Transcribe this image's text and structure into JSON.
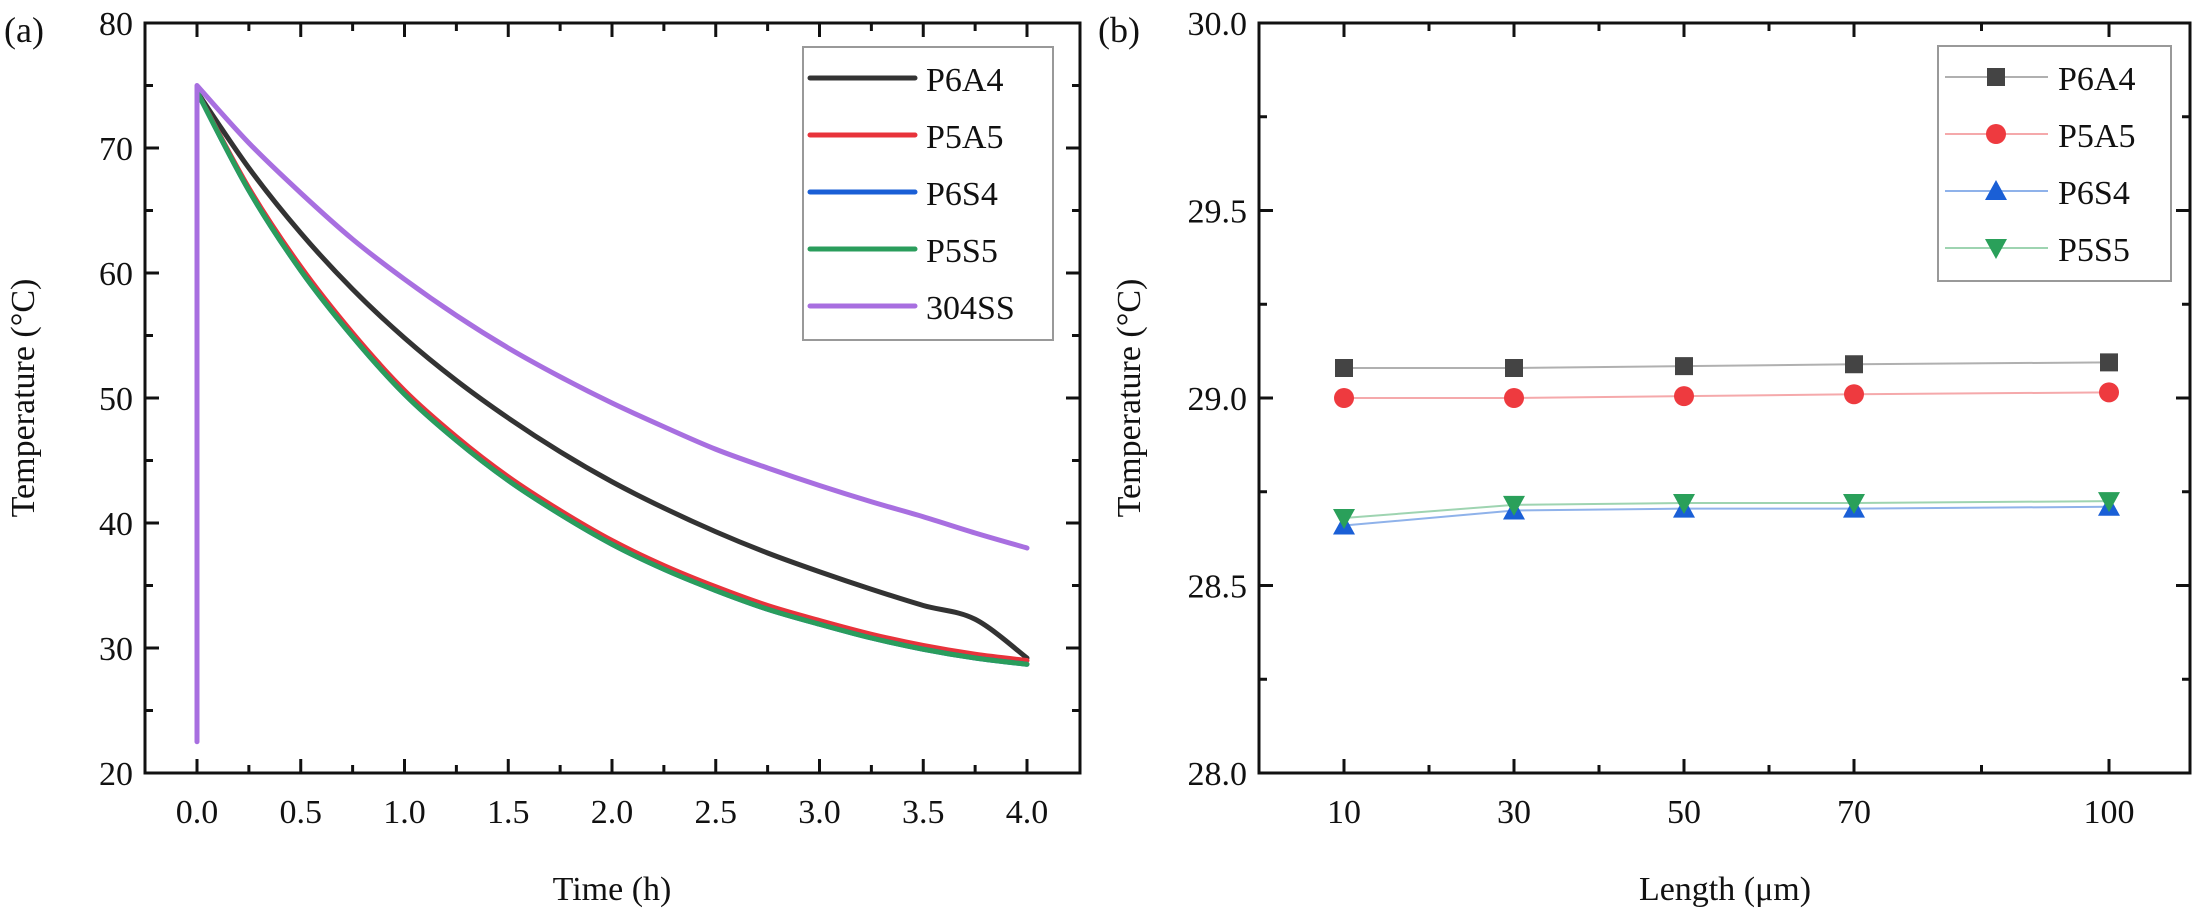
{
  "chart_data": [
    {
      "panel": "(a)",
      "type": "line",
      "title": "",
      "xlabel": "Time (h)",
      "ylabel": "Temperature (°C)",
      "xlim": [
        -0.35,
        4.35
      ],
      "ylim": [
        20,
        80
      ],
      "xticks": [
        "0.0",
        "0.5",
        "1.0",
        "1.5",
        "2.0",
        "2.5",
        "3.0",
        "3.5",
        "4.0"
      ],
      "xtick_values": [
        0,
        0.5,
        1,
        1.5,
        2,
        2.5,
        3,
        3.5,
        4
      ],
      "yticks": [
        "20",
        "30",
        "40",
        "50",
        "60",
        "70",
        "80"
      ],
      "ytick_values": [
        20,
        30,
        40,
        50,
        60,
        70,
        80
      ],
      "grid": false,
      "legend_position": "top-right",
      "x": [
        0,
        0.25,
        0.5,
        0.75,
        1.0,
        1.25,
        1.5,
        1.75,
        2.0,
        2.25,
        2.5,
        2.75,
        3.0,
        3.25,
        3.5,
        3.75,
        4.0
      ],
      "series": [
        {
          "name": "P6A4",
          "color": "#333333",
          "values": [
            74.5,
            68.4,
            63.2,
            58.7,
            54.8,
            51.4,
            48.4,
            45.7,
            43.3,
            41.2,
            39.3,
            37.6,
            36.1,
            34.7,
            33.4,
            32.3,
            29.2
          ],
          "note": "curve overlaps P5A5/P6S4/P5S5"
        },
        {
          "name": "P5A5",
          "color": "#e8333b",
          "values": [
            74.5,
            66.8,
            60.5,
            55.2,
            50.6,
            46.9,
            43.7,
            41.0,
            38.6,
            36.6,
            34.9,
            33.4,
            32.2,
            31.1,
            30.2,
            29.5,
            29.0
          ]
        },
        {
          "name": "P6S4",
          "color": "#1a5fd6",
          "values": [
            74.5,
            66.6,
            60.2,
            54.9,
            50.3,
            46.6,
            43.4,
            40.7,
            38.3,
            36.3,
            34.6,
            33.1,
            31.9,
            30.8,
            29.9,
            29.2,
            28.7
          ]
        },
        {
          "name": "P5S5",
          "color": "#2a9d5c",
          "values": [
            74.5,
            66.6,
            60.2,
            54.9,
            50.3,
            46.6,
            43.4,
            40.7,
            38.3,
            36.3,
            34.6,
            33.1,
            31.9,
            30.8,
            29.9,
            29.2,
            28.7
          ]
        },
        {
          "name": "304SS",
          "color": "#a86fe0",
          "values": [
            75.0,
            70.4,
            66.4,
            62.7,
            59.5,
            56.6,
            54.0,
            51.7,
            49.6,
            47.7,
            45.9,
            44.4,
            43.0,
            41.7,
            40.5,
            39.2,
            38.0
          ],
          "initial_jump": {
            "x": 0,
            "from": 22.5,
            "to": 75.0
          }
        }
      ]
    },
    {
      "panel": "(b)",
      "type": "line",
      "title": "",
      "xlabel": "Length (μm)",
      "ylabel": "Temperature (°C)",
      "xlim": [
        -0.1,
        109
      ],
      "ylim": [
        28.0,
        30.0
      ],
      "xticks": [
        "10",
        "30",
        "50",
        "70",
        "100"
      ],
      "xtick_values": [
        10,
        30,
        50,
        70,
        100
      ],
      "xminor_values": [
        20,
        40,
        60,
        85
      ],
      "yticks": [
        "28.0",
        "28.5",
        "29.0",
        "29.5",
        "30.0"
      ],
      "ytick_values": [
        28.0,
        28.5,
        29.0,
        29.5,
        30.0
      ],
      "grid": false,
      "legend_position": "top-right",
      "x": [
        10,
        30,
        50,
        70,
        100
      ],
      "series": [
        {
          "name": "P6A4",
          "color": "#444444",
          "line_color": "#b0b0b0",
          "marker": "square",
          "values": [
            29.08,
            29.08,
            29.085,
            29.09,
            29.095
          ]
        },
        {
          "name": "P5A5",
          "color": "#ee3a3f",
          "line_color": "#f5a9ab",
          "marker": "circle",
          "values": [
            29.0,
            29.0,
            29.005,
            29.01,
            29.015
          ]
        },
        {
          "name": "P6S4",
          "color": "#1a5fd6",
          "line_color": "#8fb2ea",
          "marker": "triangle-up",
          "values": [
            28.66,
            28.7,
            28.705,
            28.705,
            28.71
          ]
        },
        {
          "name": "P5S5",
          "color": "#2aa05a",
          "line_color": "#9ed4b1",
          "marker": "triangle-down",
          "values": [
            28.68,
            28.715,
            28.72,
            28.72,
            28.725
          ]
        }
      ]
    }
  ]
}
